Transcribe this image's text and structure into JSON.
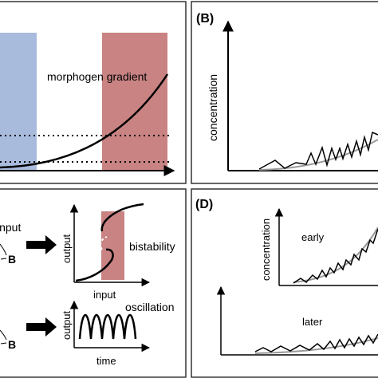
{
  "panels": {
    "A": {
      "curve_label": "morphogen gradient",
      "colors": {
        "blue_zone": "#a9bbdc",
        "red_zone": "#c98383"
      }
    },
    "B": {
      "label": "(B)",
      "ylabel": "concentration"
    },
    "C": {
      "input_label": "input",
      "node_b_1": "B",
      "node_b_2": "B",
      "plot1": {
        "ylabel": "output",
        "xlabel": "input",
        "annotation": "bistability"
      },
      "plot2": {
        "ylabel": "output",
        "xlabel": "time",
        "annotation": "oscillation"
      },
      "colors": {
        "bistability_zone": "#c98383"
      }
    },
    "D": {
      "label": "(D)",
      "ylabel": "concentration",
      "early_label": "early",
      "later_label": "later"
    }
  }
}
